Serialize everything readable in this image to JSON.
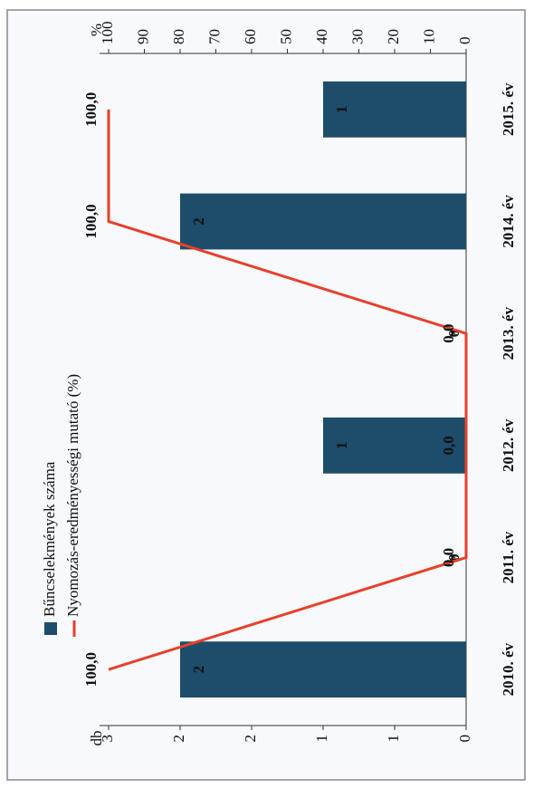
{
  "chart_data": {
    "type": "bar-line",
    "categories": [
      "2010. év",
      "2011. év",
      "2012. év",
      "2013. év",
      "2014. év",
      "2015. év"
    ],
    "series": [
      {
        "name": "Bűncselekmények száma",
        "type": "bar",
        "color": "#1d4d6a",
        "values": [
          2,
          0,
          1,
          0,
          2,
          1
        ]
      },
      {
        "name": "Nyomozás-eredményességi mutató (%)",
        "type": "line",
        "axis": "y2",
        "color": "#e8402a",
        "values": [
          100,
          0,
          0,
          0,
          100,
          100
        ],
        "value_labels": [
          "100,0",
          "0,0",
          "0,0",
          "0,0",
          "100,0",
          "100,0"
        ]
      }
    ],
    "y_label": "db",
    "y2_label": "%",
    "ylim": [
      0,
      2.5
    ],
    "yticks": [
      0,
      {
        "value": 0.5,
        "label": "1"
      },
      1,
      {
        "value": 1.5,
        "label": "2"
      },
      2,
      {
        "value": 2.5,
        "label": "3"
      }
    ],
    "y2lim": [
      0,
      100
    ],
    "y2ticks": [
      0,
      10,
      20,
      30,
      40,
      50,
      60,
      70,
      80,
      90,
      100
    ],
    "legend": "top-left"
  }
}
